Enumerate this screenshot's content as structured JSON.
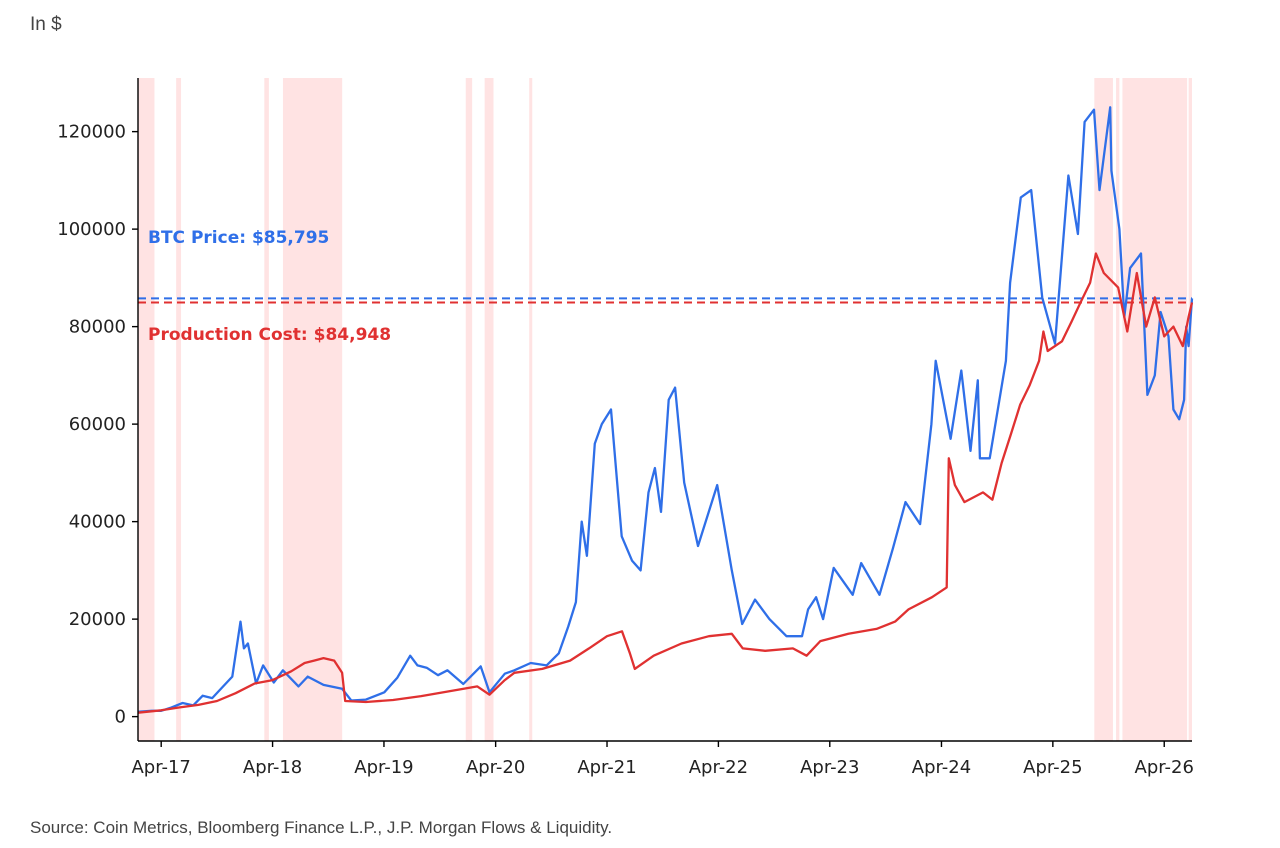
{
  "header": {
    "unit_label": "In $"
  },
  "footer": {
    "source": "Source: Coin Metrics, Bloomberg Finance L.P., J.P. Morgan Flows & Liquidity."
  },
  "colors": {
    "price": "#2f6fe8",
    "cost": "#e03131",
    "shade": "#ffcccc"
  },
  "chart_data": {
    "type": "line",
    "title": "",
    "xlabel": "",
    "ylabel": "",
    "x_range": [
      "2017-01-15",
      "2026-07-01"
    ],
    "ylim": [
      -5000,
      131000
    ],
    "grid": false,
    "x_ticks": [
      "Apr-17",
      "Apr-18",
      "Apr-19",
      "Apr-20",
      "Apr-21",
      "Apr-22",
      "Apr-23",
      "Apr-24",
      "Apr-25",
      "Apr-26"
    ],
    "x_tick_dates": [
      "2017-04-01",
      "2018-04-01",
      "2019-04-01",
      "2020-04-01",
      "2021-04-01",
      "2022-04-01",
      "2023-04-01",
      "2024-04-01",
      "2025-04-01",
      "2026-04-01"
    ],
    "y_ticks": [
      0,
      20000,
      40000,
      60000,
      80000,
      100000,
      120000
    ],
    "y_tick_labels": [
      "0",
      "20000",
      "40000",
      "60000",
      "80000",
      "100000",
      "120000"
    ],
    "reference_lines": [
      {
        "label": "BTC Price: $85,795",
        "value": 85795,
        "color": "#2f6fe8"
      },
      {
        "label": "Production Cost: $84,948",
        "value": 84948,
        "color": "#e03131"
      }
    ],
    "shaded_periods": [
      [
        "2017-01-15",
        "2017-03-10"
      ],
      [
        "2017-05-20",
        "2017-06-05"
      ],
      [
        "2018-03-05",
        "2018-03-20"
      ],
      [
        "2018-05-05",
        "2018-11-15"
      ],
      [
        "2019-12-25",
        "2020-01-15"
      ],
      [
        "2020-02-25",
        "2020-03-25"
      ],
      [
        "2020-07-20",
        "2020-07-30"
      ],
      [
        "2025-08-15",
        "2025-10-15"
      ],
      [
        "2025-10-25",
        "2025-11-05"
      ],
      [
        "2025-11-15",
        "2026-06-15"
      ],
      [
        "2026-06-20",
        "2026-07-01"
      ]
    ],
    "series": [
      {
        "color": "#2f6fe8",
        "points": [
          [
            "2017-01-15",
            1000
          ],
          [
            "2017-03-01",
            1200
          ],
          [
            "2017-04-01",
            1200
          ],
          [
            "2017-05-01",
            1800
          ],
          [
            "2017-06-10",
            2800
          ],
          [
            "2017-07-15",
            2300
          ],
          [
            "2017-08-15",
            4300
          ],
          [
            "2017-09-15",
            3800
          ],
          [
            "2017-10-15",
            5800
          ],
          [
            "2017-11-20",
            8200
          ],
          [
            "2017-12-17",
            19500
          ],
          [
            "2017-12-28",
            14000
          ],
          [
            "2018-01-10",
            15000
          ],
          [
            "2018-02-06",
            6800
          ],
          [
            "2018-03-01",
            10500
          ],
          [
            "2018-04-05",
            7000
          ],
          [
            "2018-05-05",
            9500
          ],
          [
            "2018-06-25",
            6200
          ],
          [
            "2018-07-25",
            8200
          ],
          [
            "2018-09-15",
            6500
          ],
          [
            "2018-11-15",
            5700
          ],
          [
            "2018-12-15",
            3300
          ],
          [
            "2019-02-01",
            3500
          ],
          [
            "2019-04-02",
            5000
          ],
          [
            "2019-05-15",
            8000
          ],
          [
            "2019-06-26",
            12500
          ],
          [
            "2019-07-20",
            10500
          ],
          [
            "2019-08-20",
            10000
          ],
          [
            "2019-09-25",
            8500
          ],
          [
            "2019-10-26",
            9500
          ],
          [
            "2019-12-17",
            6700
          ],
          [
            "2020-02-12",
            10300
          ],
          [
            "2020-03-12",
            5000
          ],
          [
            "2020-05-01",
            8800
          ],
          [
            "2020-06-01",
            9500
          ],
          [
            "2020-07-25",
            11000
          ],
          [
            "2020-09-15",
            10500
          ],
          [
            "2020-10-25",
            13000
          ],
          [
            "2020-11-25",
            18500
          ],
          [
            "2020-12-20",
            23500
          ],
          [
            "2021-01-08",
            40000
          ],
          [
            "2021-01-25",
            33000
          ],
          [
            "2021-02-20",
            56000
          ],
          [
            "2021-03-15",
            60000
          ],
          [
            "2021-04-14",
            63000
          ],
          [
            "2021-05-19",
            37000
          ],
          [
            "2021-06-22",
            32000
          ],
          [
            "2021-07-20",
            30000
          ],
          [
            "2021-08-15",
            46000
          ],
          [
            "2021-09-05",
            51000
          ],
          [
            "2021-09-25",
            42000
          ],
          [
            "2021-10-20",
            65000
          ],
          [
            "2021-11-10",
            67500
          ],
          [
            "2021-12-10",
            48000
          ],
          [
            "2022-01-24",
            35000
          ],
          [
            "2022-03-28",
            47500
          ],
          [
            "2022-05-15",
            30000
          ],
          [
            "2022-06-18",
            19000
          ],
          [
            "2022-07-30",
            24000
          ],
          [
            "2022-09-15",
            20000
          ],
          [
            "2022-11-10",
            16500
          ],
          [
            "2022-12-31",
            16500
          ],
          [
            "2023-01-20",
            22000
          ],
          [
            "2023-02-15",
            24500
          ],
          [
            "2023-03-10",
            20000
          ],
          [
            "2023-04-14",
            30500
          ],
          [
            "2023-06-15",
            25000
          ],
          [
            "2023-07-13",
            31500
          ],
          [
            "2023-09-11",
            25000
          ],
          [
            "2023-10-25",
            34500
          ],
          [
            "2023-12-05",
            44000
          ],
          [
            "2024-01-22",
            39500
          ],
          [
            "2024-02-28",
            60000
          ],
          [
            "2024-03-13",
            73000
          ],
          [
            "2024-05-01",
            57000
          ],
          [
            "2024-06-05",
            71000
          ],
          [
            "2024-07-05",
            54500
          ],
          [
            "2024-07-29",
            69000
          ],
          [
            "2024-08-05",
            53000
          ],
          [
            "2024-09-06",
            53000
          ],
          [
            "2024-10-29",
            73000
          ],
          [
            "2024-11-12",
            89000
          ],
          [
            "2024-12-17",
            106500
          ],
          [
            "2025-01-20",
            108000
          ],
          [
            "2025-02-25",
            86000
          ],
          [
            "2025-04-08",
            76500
          ],
          [
            "2025-05-22",
            111000
          ],
          [
            "2025-06-22",
            99000
          ],
          [
            "2025-07-14",
            122000
          ],
          [
            "2025-08-14",
            124500
          ],
          [
            "2025-09-01",
            108000
          ],
          [
            "2025-10-06",
            125000
          ],
          [
            "2025-10-10",
            112000
          ],
          [
            "2025-11-05",
            100000
          ],
          [
            "2025-11-21",
            82000
          ],
          [
            "2025-12-10",
            92000
          ],
          [
            "2026-01-15",
            95000
          ],
          [
            "2026-02-05",
            66000
          ],
          [
            "2026-03-01",
            70000
          ],
          [
            "2026-03-20",
            83000
          ],
          [
            "2026-04-15",
            78000
          ],
          [
            "2026-05-01",
            63000
          ],
          [
            "2026-05-20",
            61000
          ],
          [
            "2026-06-05",
            65000
          ],
          [
            "2026-06-12",
            80000
          ],
          [
            "2026-06-20",
            76000
          ],
          [
            "2026-07-01",
            85795
          ]
        ]
      },
      {
        "color": "#e03131",
        "points": [
          [
            "2017-01-15",
            800
          ],
          [
            "2017-04-01",
            1300
          ],
          [
            "2017-06-01",
            1900
          ],
          [
            "2017-08-01",
            2400
          ],
          [
            "2017-10-01",
            3200
          ],
          [
            "2017-12-01",
            4800
          ],
          [
            "2018-02-01",
            6800
          ],
          [
            "2018-04-01",
            7500
          ],
          [
            "2018-06-01",
            9300
          ],
          [
            "2018-07-15",
            11000
          ],
          [
            "2018-08-15",
            11500
          ],
          [
            "2018-09-15",
            12000
          ],
          [
            "2018-10-20",
            11500
          ],
          [
            "2018-11-15",
            9000
          ],
          [
            "2018-11-25",
            3200
          ],
          [
            "2019-02-01",
            3000
          ],
          [
            "2019-05-01",
            3400
          ],
          [
            "2019-08-01",
            4200
          ],
          [
            "2019-11-01",
            5200
          ],
          [
            "2020-02-01",
            6200
          ],
          [
            "2020-03-12",
            4500
          ],
          [
            "2020-05-01",
            7500
          ],
          [
            "2020-06-01",
            9000
          ],
          [
            "2020-09-01",
            9800
          ],
          [
            "2020-12-01",
            11500
          ],
          [
            "2021-02-01",
            14000
          ],
          [
            "2021-04-01",
            16500
          ],
          [
            "2021-05-20",
            17500
          ],
          [
            "2021-06-15",
            13000
          ],
          [
            "2021-07-01",
            9800
          ],
          [
            "2021-09-01",
            12500
          ],
          [
            "2021-12-01",
            15000
          ],
          [
            "2022-03-01",
            16500
          ],
          [
            "2022-05-15",
            17000
          ],
          [
            "2022-06-20",
            14000
          ],
          [
            "2022-09-01",
            13500
          ],
          [
            "2022-12-01",
            14000
          ],
          [
            "2023-01-15",
            12500
          ],
          [
            "2023-03-01",
            15500
          ],
          [
            "2023-06-01",
            17000
          ],
          [
            "2023-09-01",
            18000
          ],
          [
            "2023-11-01",
            19500
          ],
          [
            "2023-12-15",
            22000
          ],
          [
            "2024-03-01",
            24500
          ],
          [
            "2024-04-18",
            26500
          ],
          [
            "2024-04-25",
            53000
          ],
          [
            "2024-05-15",
            47500
          ],
          [
            "2024-06-15",
            44000
          ],
          [
            "2024-08-15",
            46000
          ],
          [
            "2024-09-15",
            44500
          ],
          [
            "2024-10-15",
            52000
          ],
          [
            "2024-11-15",
            58000
          ],
          [
            "2024-12-15",
            64000
          ],
          [
            "2025-01-15",
            68000
          ],
          [
            "2025-02-15",
            73000
          ],
          [
            "2025-03-01",
            79000
          ],
          [
            "2025-03-15",
            75000
          ],
          [
            "2025-05-01",
            77000
          ],
          [
            "2025-06-01",
            81000
          ],
          [
            "2025-07-01",
            85000
          ],
          [
            "2025-08-01",
            89000
          ],
          [
            "2025-08-20",
            95000
          ],
          [
            "2025-09-15",
            91000
          ],
          [
            "2025-11-01",
            88000
          ],
          [
            "2025-12-01",
            79000
          ],
          [
            "2026-01-01",
            91000
          ],
          [
            "2026-02-01",
            80000
          ],
          [
            "2026-03-01",
            86000
          ],
          [
            "2026-04-01",
            78000
          ],
          [
            "2026-05-01",
            80000
          ],
          [
            "2026-06-01",
            76000
          ],
          [
            "2026-06-20",
            82000
          ],
          [
            "2026-07-01",
            84948
          ]
        ]
      }
    ]
  }
}
